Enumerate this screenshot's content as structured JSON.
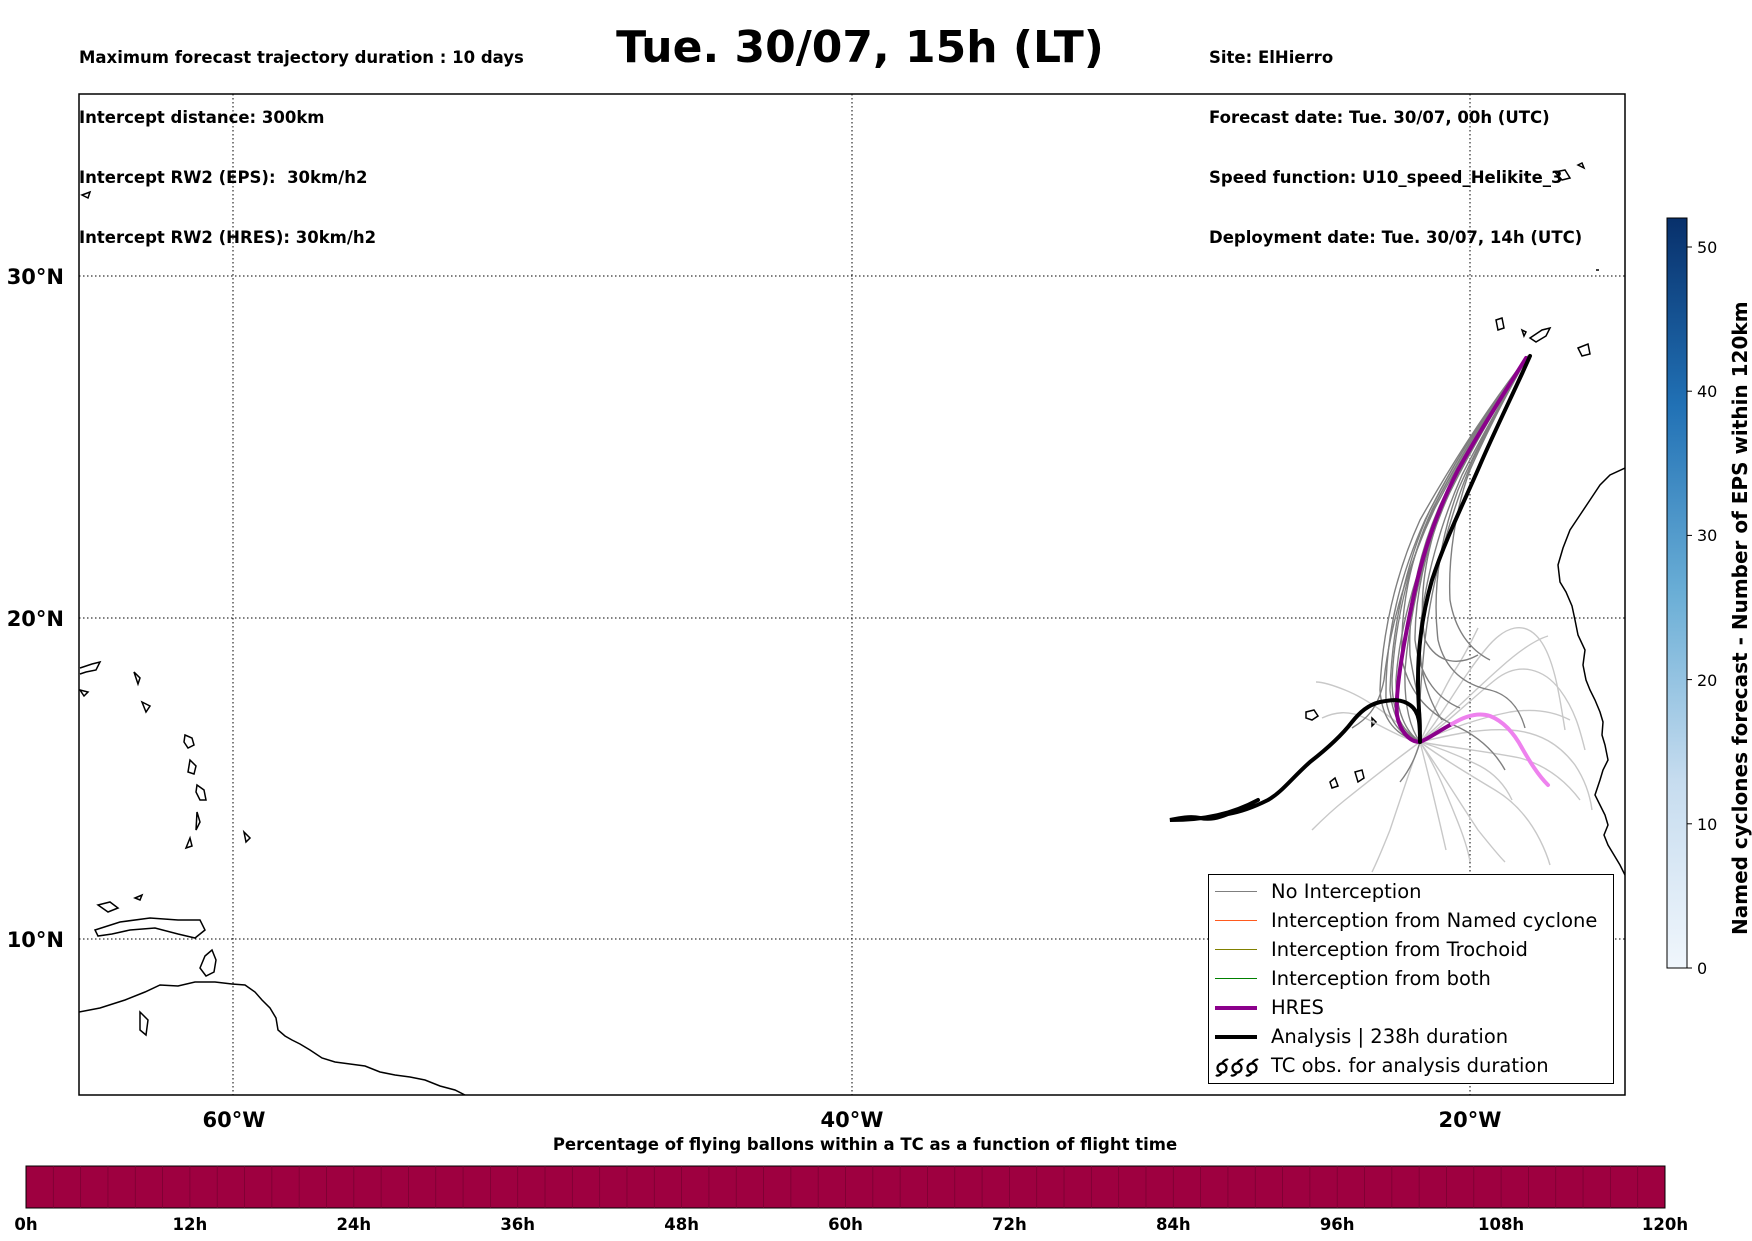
{
  "header": {
    "left": [
      "Maximum forecast trajectory duration : 10 days",
      "Intercept distance: 300km",
      "Intercept RW2 (EPS):  30km/h2",
      "Intercept RW2 (HRES): 30km/h2"
    ],
    "title": "Tue. 30/07, 15h (LT)",
    "right": [
      "Site: ElHierro",
      "Forecast date: Tue. 30/07, 00h (UTC)",
      "Speed function: U10_speed_Helikite_3",
      "Deployment date: Tue. 30/07, 14h (UTC)"
    ]
  },
  "map": {
    "lon_labels": [
      "60°W",
      "40°W",
      "20°W"
    ],
    "lat_labels": [
      "30°N",
      "20°N",
      "10°N"
    ],
    "colors": {
      "no_interception": "#7f7f7f",
      "named_cyclone": "#ff5a1e",
      "trochoid": "#808000",
      "both": "#008000",
      "hres": "#8b008b",
      "hres_tail": "#ee82ee",
      "analysis": "#000000",
      "light_tracks": "#c8c8c8"
    }
  },
  "legend": {
    "items": [
      {
        "label": "No Interception",
        "color": "#7f7f7f"
      },
      {
        "label": "Interception from Named cyclone",
        "color": "#ff5a1e"
      },
      {
        "label": "Interception from Trochoid",
        "color": "#808000"
      },
      {
        "label": "Interception from both",
        "color": "#008000"
      },
      {
        "label": "HRES",
        "color": "#8b008b"
      },
      {
        "label": "Analysis | 238h duration",
        "color": "#000000"
      },
      {
        "label": "TC obs. for analysis duration",
        "icon": "tc-symbol-icon"
      }
    ]
  },
  "colorbar_vertical": {
    "label": "Named cyclones forecast - Number of EPS within 120km",
    "ticks": [
      "0",
      "10",
      "20",
      "30",
      "40",
      "50"
    ],
    "range": [
      0,
      52
    ]
  },
  "colorbar_horizontal": {
    "title": "Percentage of flying ballons within a TC as a function of flight time",
    "ticks": [
      "0h",
      "12h",
      "24h",
      "36h",
      "48h",
      "60h",
      "72h",
      "84h",
      "96h",
      "108h",
      "120h"
    ],
    "color": "#9e0040"
  }
}
